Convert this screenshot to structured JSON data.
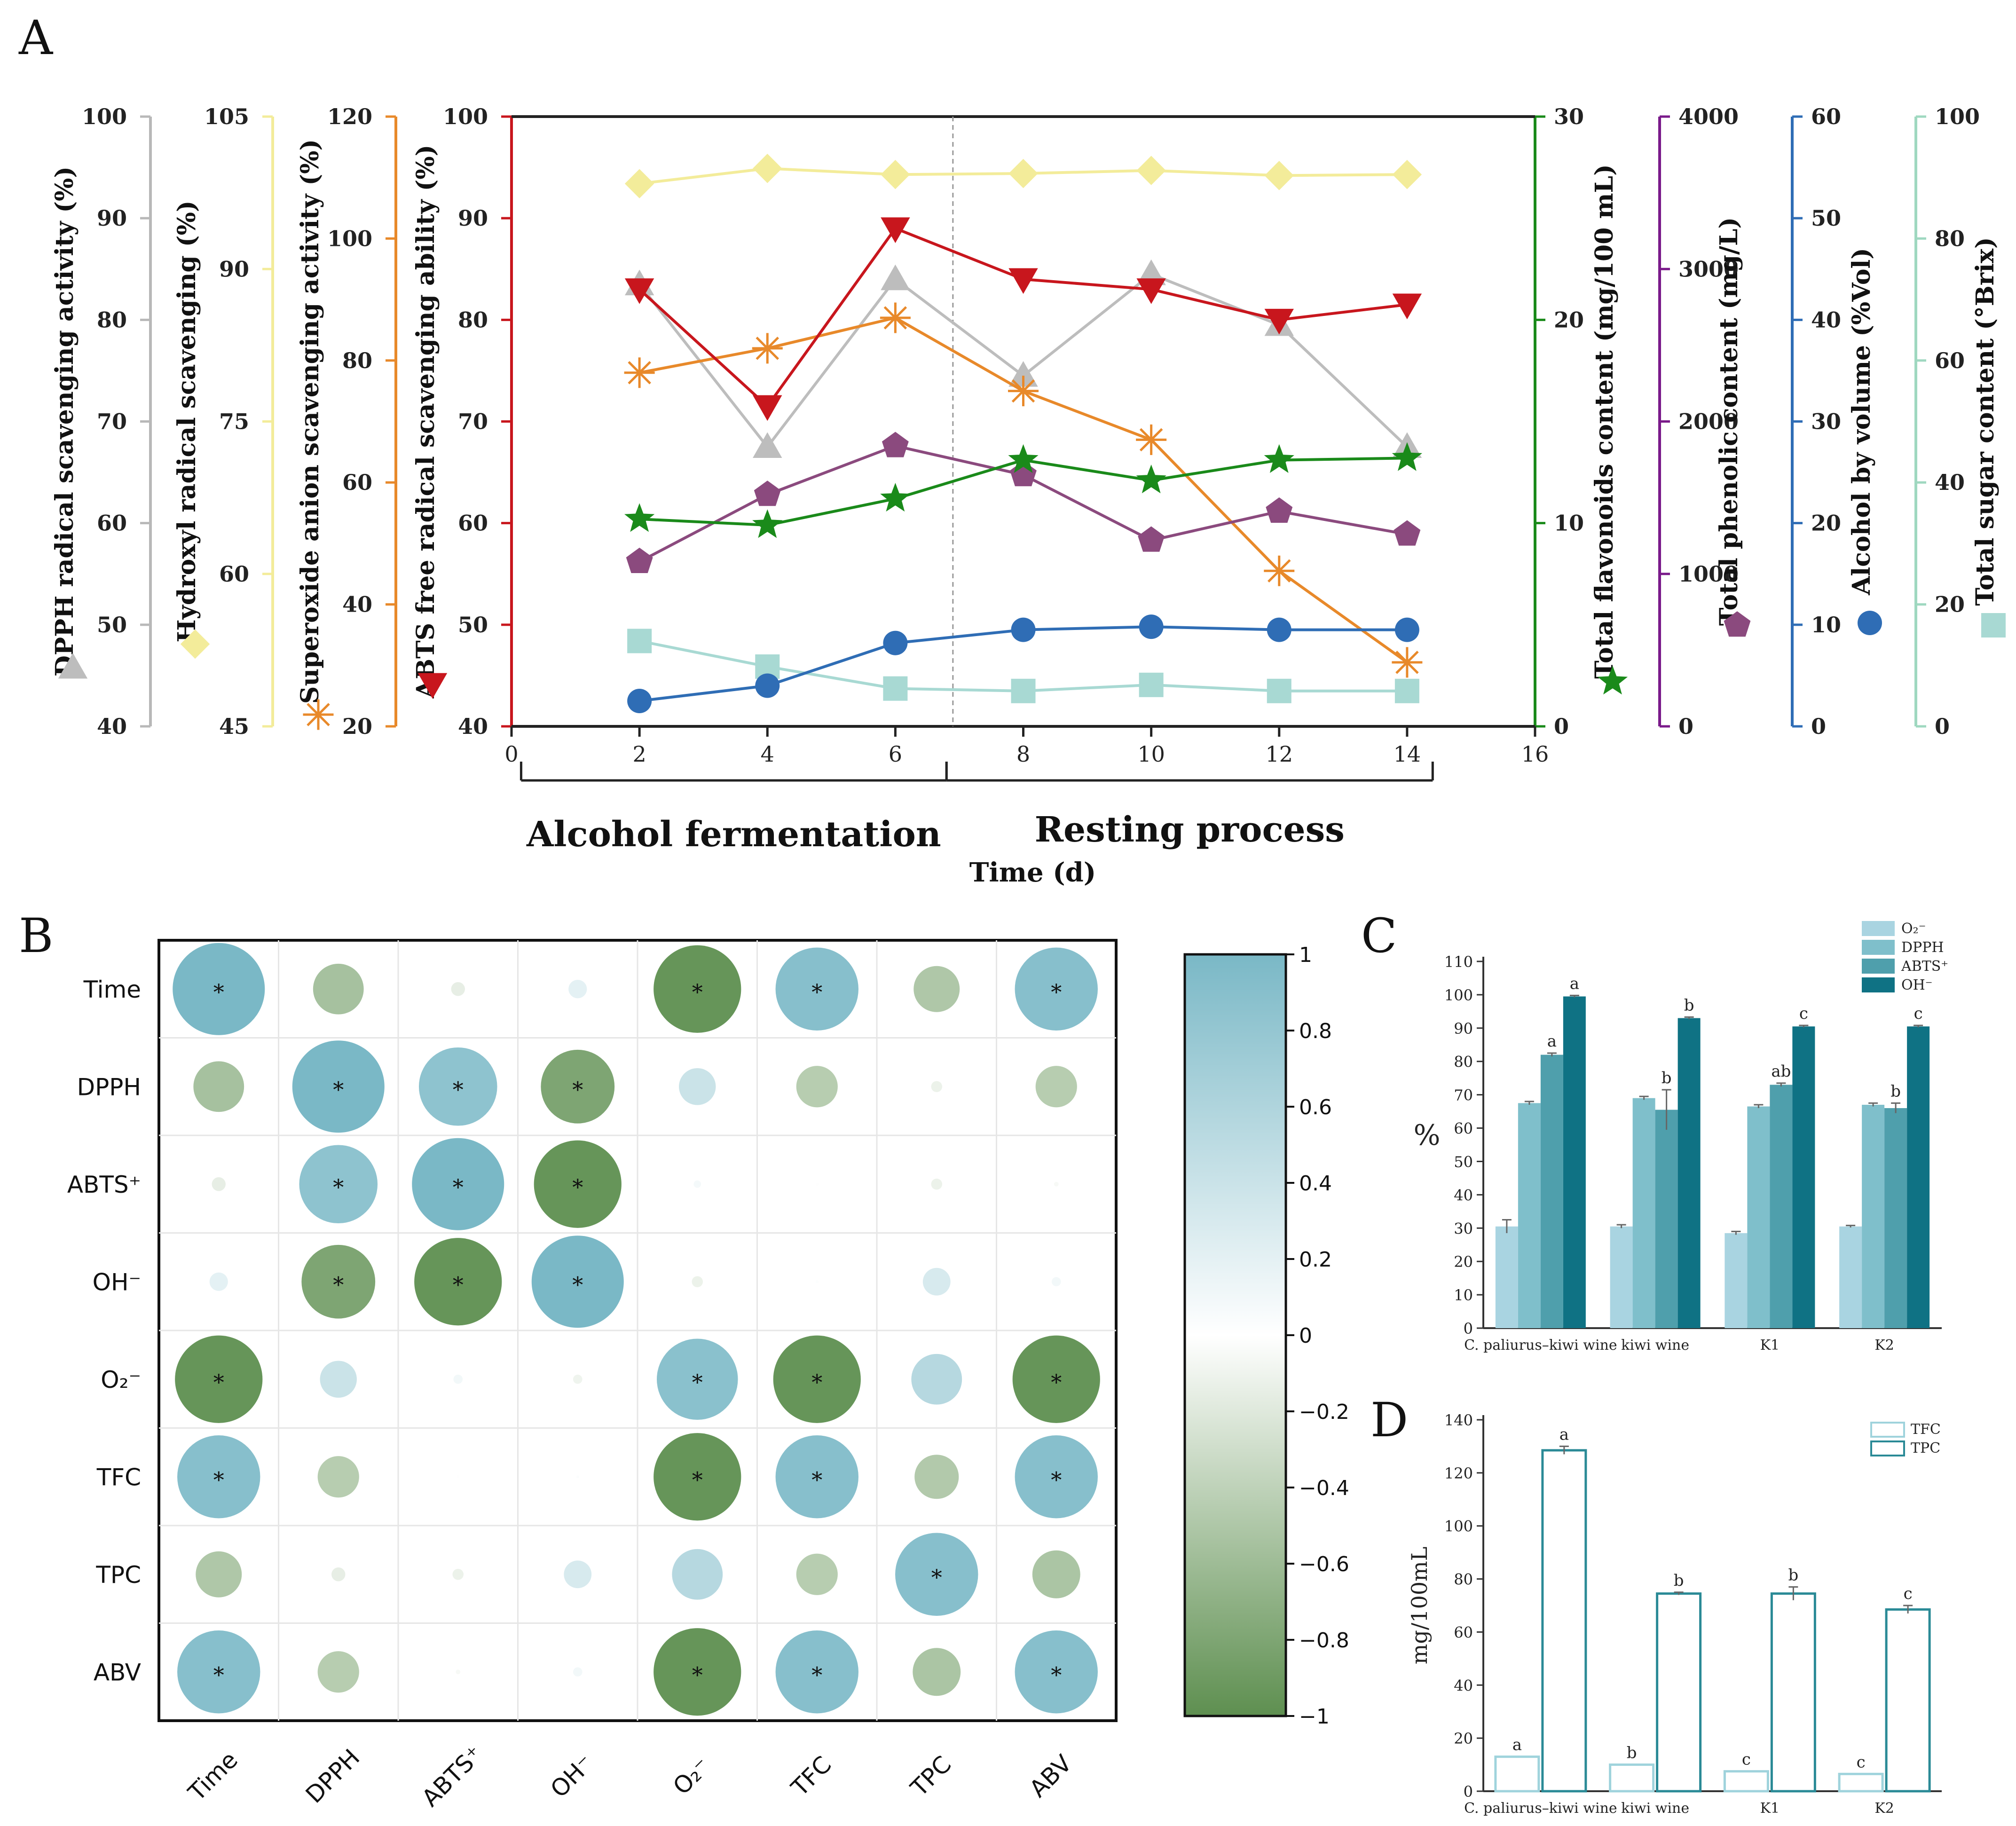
{
  "panel_labels": {
    "a": "A",
    "b": "B",
    "c": "C",
    "d": "D"
  },
  "chart_data": [
    {
      "id": "A",
      "type": "line",
      "xlabel": "Time (d)",
      "xlim": [
        0,
        16
      ],
      "xticks": [
        0,
        2,
        4,
        6,
        8,
        10,
        12,
        14,
        16
      ],
      "x": [
        2,
        4,
        6,
        8,
        10,
        12,
        14
      ],
      "phases": [
        {
          "label": "Alcohol fermentation",
          "from": 0.15,
          "to": 6.8
        },
        {
          "label": "Resting process",
          "from": 6.8,
          "to": 14.4
        }
      ],
      "divider_x": 6.9,
      "axes": [
        {
          "key": "dpph",
          "label": "DPPH radical scavenging activity (%)",
          "range": [
            40,
            100
          ],
          "ticks": [
            40,
            50,
            60,
            70,
            80,
            90,
            100
          ],
          "color": "#b8b8b8",
          "side": "left"
        },
        {
          "key": "oh",
          "label": "Hydroxyl radical scavenging (%)",
          "range": [
            45,
            105
          ],
          "ticks": [
            45,
            60,
            75,
            90,
            105
          ],
          "color": "#f3ec9a",
          "side": "left"
        },
        {
          "key": "sa",
          "label": "Superoxide anion scavenging activity (%)",
          "range": [
            20,
            120
          ],
          "ticks": [
            20,
            40,
            60,
            80,
            100,
            120
          ],
          "color": "#e8892a",
          "side": "left"
        },
        {
          "key": "abts",
          "label": "ABTS free radical scavenging ability (%)",
          "range": [
            40,
            100
          ],
          "ticks": [
            40,
            50,
            60,
            70,
            80,
            90,
            100
          ],
          "color": "#c8161d",
          "side": "main"
        },
        {
          "key": "tfc",
          "label": "Total flavonoids content (mg/100 mL)",
          "range": [
            0,
            30
          ],
          "ticks": [
            0,
            10,
            20,
            30
          ],
          "color": "#1a8a1a",
          "side": "right"
        },
        {
          "key": "tpc",
          "label": "Total phenolic content (mg/L)",
          "range": [
            0,
            4000
          ],
          "ticks": [
            0,
            1000,
            2000,
            3000,
            4000
          ],
          "color": "#7a1a8a",
          "side": "right"
        },
        {
          "key": "abv",
          "label": "Alcohol by volume (%Vol)",
          "range": [
            0,
            60
          ],
          "ticks": [
            0,
            10,
            20,
            30,
            40,
            50,
            60
          ],
          "color": "#2f6db5",
          "side": "right"
        },
        {
          "key": "sugar",
          "label": "Total sugar content (°Brix)",
          "range": [
            0,
            100
          ],
          "ticks": [
            0,
            20,
            40,
            60,
            80,
            100
          ],
          "color": "#9fd8c0",
          "side": "right"
        }
      ],
      "series": [
        {
          "name": "Hydroxyl radical scavenging",
          "axis": "oh",
          "marker": "diamond",
          "color": "#f3ec9a",
          "line": "#f3ec9a",
          "values": [
            98.4,
            99.9,
            99.3,
            99.4,
            99.7,
            99.2,
            99.3
          ]
        },
        {
          "name": "DPPH radical scavenging activity",
          "axis": "dpph",
          "marker": "triangle-up",
          "color": "#bdbdbd",
          "line": "#bdbdbd",
          "values": [
            83.5,
            67.5,
            84,
            74.5,
            84.5,
            79.5,
            67.5
          ]
        },
        {
          "name": "Superoxide anion scavenging activity",
          "axis": "sa",
          "marker": "asterisk",
          "color": "#e8892a",
          "line": "#e8892a",
          "values": [
            78,
            82,
            87,
            75,
            67,
            45.5,
            30.5
          ]
        },
        {
          "name": "ABTS free radical scavenging ability",
          "axis": "abts",
          "marker": "triangle-down",
          "color": "#c8161d",
          "line": "#c8161d",
          "values": [
            83,
            71.5,
            89,
            84,
            83,
            80,
            81.5
          ]
        },
        {
          "name": "Total phenolic content",
          "axis": "tpc",
          "marker": "pentagon",
          "color": "#8b4a7e",
          "line": "#8b4a7e",
          "values": [
            1080,
            1520,
            1840,
            1650,
            1220,
            1410,
            1260
          ]
        },
        {
          "name": "Total flavonoids content",
          "axis": "tfc",
          "marker": "star",
          "color": "#1a8a1a",
          "line": "#1a8a1a",
          "values": [
            10.2,
            9.9,
            11.2,
            13.1,
            12.1,
            13.1,
            13.2
          ]
        },
        {
          "name": "Total sugar content",
          "axis": "sugar",
          "marker": "square",
          "color": "#a8d9d3",
          "line": "#a8d9d3",
          "values": [
            14,
            9.8,
            6.2,
            5.8,
            6.8,
            5.8,
            5.8
          ]
        },
        {
          "name": "Alcohol by volume",
          "axis": "abv",
          "marker": "circle",
          "color": "#2f6db5",
          "line": "#2f6db5",
          "values": [
            2.5,
            4,
            8.2,
            9.5,
            9.8,
            9.5,
            9.5
          ]
        }
      ]
    },
    {
      "id": "B",
      "type": "heatmap",
      "labels": [
        "Time",
        "DPPH",
        "ABTS⁺",
        "OH⁻",
        "O₂⁻",
        "TFC",
        "TPC",
        "ABV"
      ],
      "matrix": [
        [
          1,
          -0.55,
          -0.15,
          0.2,
          -0.95,
          0.9,
          -0.5,
          0.9
        ],
        [
          -0.55,
          1,
          0.85,
          -0.8,
          0.4,
          -0.45,
          -0.12,
          -0.45
        ],
        [
          -0.15,
          0.85,
          1,
          -0.95,
          0.08,
          0.01,
          -0.12,
          -0.05
        ],
        [
          0.2,
          -0.8,
          -0.95,
          1,
          -0.12,
          0.02,
          0.3,
          0.1
        ],
        [
          -0.95,
          0.4,
          0.1,
          -0.1,
          0.88,
          -0.95,
          0.55,
          -0.95
        ],
        [
          0.9,
          -0.45,
          0.01,
          0.03,
          -0.95,
          0.9,
          -0.48,
          0.9
        ],
        [
          -0.5,
          -0.15,
          -0.12,
          0.3,
          0.55,
          -0.45,
          0.9,
          -0.52
        ],
        [
          0.9,
          -0.45,
          -0.05,
          0.1,
          -0.95,
          0.9,
          -0.52,
          0.9
        ]
      ],
      "significant": [
        [
          1,
          0,
          0,
          0,
          1,
          1,
          0,
          1
        ],
        [
          0,
          1,
          1,
          1,
          0,
          0,
          0,
          0
        ],
        [
          0,
          1,
          1,
          1,
          0,
          0,
          0,
          0
        ],
        [
          0,
          1,
          1,
          1,
          0,
          0,
          0,
          0
        ],
        [
          1,
          0,
          0,
          0,
          1,
          1,
          0,
          1
        ],
        [
          1,
          0,
          0,
          0,
          1,
          1,
          0,
          1
        ],
        [
          0,
          0,
          0,
          0,
          0,
          0,
          1,
          0
        ],
        [
          1,
          0,
          0,
          0,
          1,
          1,
          0,
          1
        ]
      ],
      "sig_mark": "*",
      "colorbar": {
        "ticks": [
          "1",
          "0.8",
          "0.6",
          "0.4",
          "0.2",
          "0",
          "−0.2",
          "−0.4",
          "−0.6",
          "−0.8",
          "−1"
        ],
        "positive": "#7ab8c6",
        "negative": "#5e8f50"
      }
    },
    {
      "id": "C",
      "type": "bar",
      "ylabel": "%",
      "ylim": [
        0,
        110
      ],
      "yticks": [
        "0",
        "10",
        "20",
        "30",
        "40",
        "50",
        "60",
        "70",
        "80",
        "90",
        "100",
        "110"
      ],
      "categories": [
        "C. paliurus–kiwi wine",
        "kiwi wine",
        "K1",
        "K2"
      ],
      "series": [
        {
          "name": "O₂⁻",
          "color": "#a9d4e1",
          "values": [
            30.5,
            30.5,
            28.5,
            30.5
          ],
          "errors": [
            2,
            0.5,
            0.5,
            0.3
          ],
          "letters": [
            "",
            "",
            "",
            ""
          ]
        },
        {
          "name": "DPPH",
          "color": "#7fbfcb",
          "values": [
            67.5,
            69,
            66.5,
            67
          ],
          "errors": [
            0.5,
            0.5,
            0.5,
            0.5
          ],
          "letters": [
            "",
            "",
            "",
            ""
          ]
        },
        {
          "name": "ABTS⁺",
          "color": "#4f9fac",
          "values": [
            82,
            65.5,
            73,
            66
          ],
          "errors": [
            0.5,
            6,
            0.5,
            1.5
          ],
          "letters": [
            "a",
            "b",
            "ab",
            "b"
          ]
        },
        {
          "name": "OH⁻",
          "color": "#0f7284",
          "values": [
            99.5,
            93,
            90.5,
            90.5
          ],
          "errors": [
            0.3,
            0.3,
            0.3,
            0.3
          ],
          "letters": [
            "a",
            "b",
            "c",
            "c"
          ]
        }
      ]
    },
    {
      "id": "D",
      "type": "bar",
      "ylabel": "mg/100mL",
      "ylim": [
        0,
        140
      ],
      "yticks": [
        "0",
        "20",
        "40",
        "60",
        "80",
        "100",
        "120",
        "140"
      ],
      "categories": [
        "C. paliurus–kiwi wine",
        "kiwi wine",
        "K1",
        "K2"
      ],
      "series": [
        {
          "name": "TFC",
          "color": "#9fd3dc",
          "values": [
            13,
            10,
            7.5,
            6.5
          ],
          "errors": [
            0,
            0,
            0,
            0
          ],
          "letters": [
            "a",
            "b",
            "c",
            "c"
          ]
        },
        {
          "name": "TPC",
          "color": "#2a8a96",
          "values": [
            128.5,
            74.5,
            74.5,
            68.5
          ],
          "errors": [
            1.5,
            0.5,
            2.5,
            1.5
          ],
          "letters": [
            "a",
            "b",
            "b",
            "c"
          ]
        }
      ]
    }
  ]
}
